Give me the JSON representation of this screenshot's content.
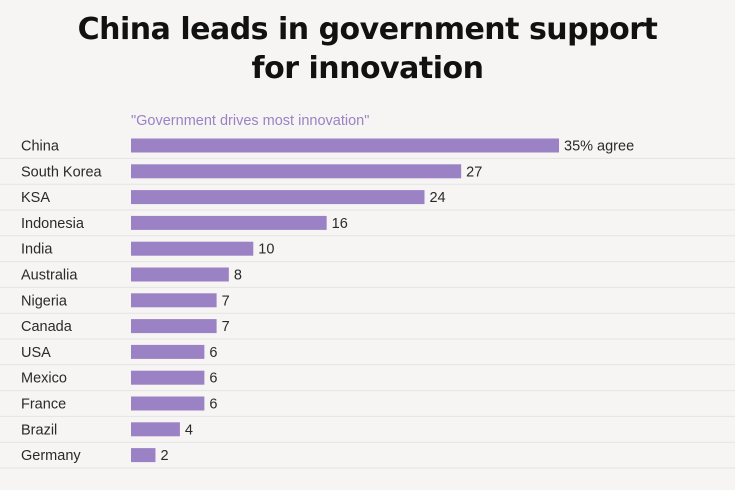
{
  "title_lines": [
    "China leads in government support",
    "for innovation"
  ],
  "chart_data": {
    "type": "bar",
    "orientation": "horizontal",
    "subtitle": "\"Government drives most innovation\"",
    "categories": [
      "China",
      "South Korea",
      "KSA",
      "Indonesia",
      "India",
      "Australia",
      "Nigeria",
      "Canada",
      "USA",
      "Mexico",
      "France",
      "Brazil",
      "Germany"
    ],
    "values": [
      35,
      27,
      24,
      16,
      10,
      8,
      7,
      7,
      6,
      6,
      6,
      4,
      2
    ],
    "value_labels": [
      "35% agree",
      "27",
      "24",
      "16",
      "10",
      "8",
      "7",
      "7",
      "6",
      "6",
      "6",
      "4",
      "2"
    ],
    "unit": "%",
    "xlim": [
      0,
      35
    ],
    "grid": true,
    "colors": {
      "bar": "#9b82c5",
      "subtitle": "#9b82c5",
      "grid": "#e6e4e2",
      "background": "#f6f5f4"
    }
  }
}
